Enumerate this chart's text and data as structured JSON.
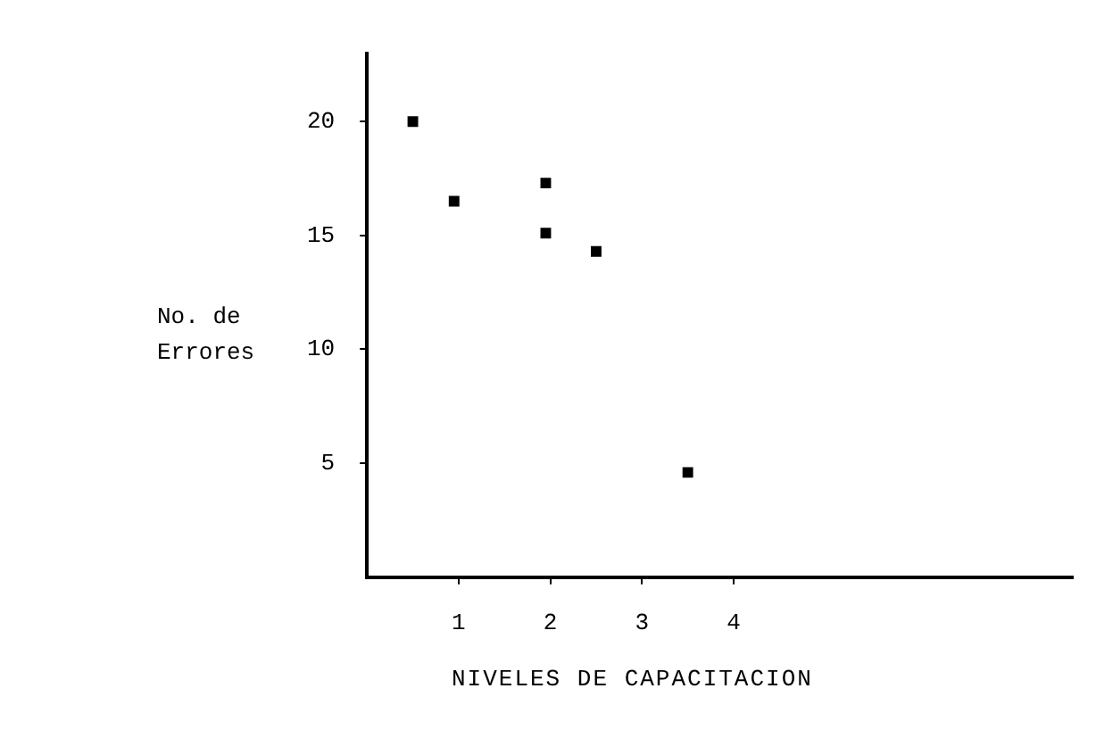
{
  "chart_data": {
    "type": "scatter",
    "xlabel": "NIVELES DE CAPACITACION",
    "ylabel": "No. de Errores",
    "series": [
      {
        "color": "#000000",
        "x": [
          0.5,
          0.95,
          1.95,
          1.95,
          2.5,
          3.5
        ],
        "values": [
          20,
          16.5,
          17.3,
          15.1,
          14.3,
          4.6
        ]
      }
    ],
    "xlim": [
      0,
      7.7
    ],
    "xticks": [
      1,
      2,
      3,
      4
    ],
    "ylim": [
      0,
      23
    ],
    "yticks": [
      5,
      10,
      15,
      20
    ],
    "grid": false,
    "legend": false,
    "marker": "square"
  }
}
